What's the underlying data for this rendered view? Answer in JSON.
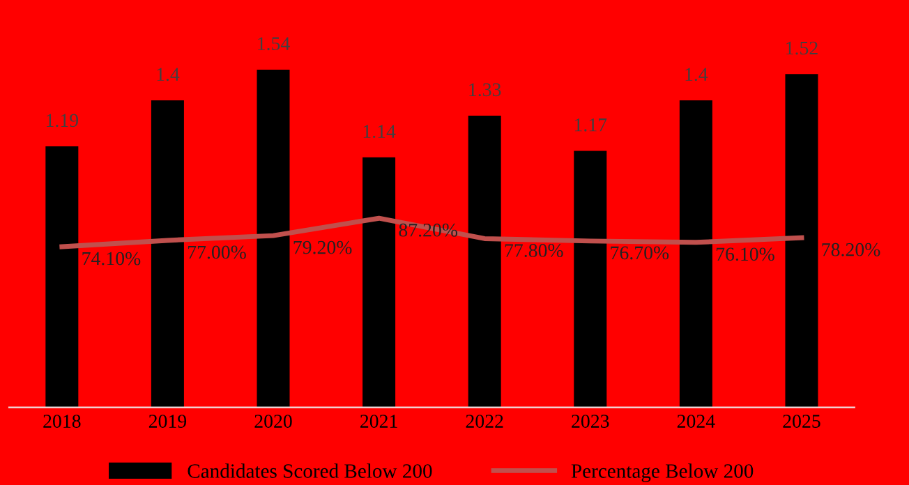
{
  "chart_data": {
    "type": "bar",
    "categories": [
      "2018",
      "2019",
      "2020",
      "2021",
      "2022",
      "2023",
      "2024",
      "2025"
    ],
    "series": [
      {
        "name": "Candidates Scored Below 200",
        "color": "#000000",
        "values": [
          1.19,
          1.4,
          1.54,
          1.14,
          1.33,
          1.17,
          1.4,
          1.52
        ],
        "value_labels": [
          "1.19",
          "1.4",
          "1.54",
          "1.14",
          "1.33",
          "1.17",
          "1.4",
          "1.52"
        ]
      },
      {
        "name": "Percentage Below 200",
        "type": "line",
        "axis": "y2",
        "color": "#c0504d",
        "values": [
          74.1,
          77.0,
          79.2,
          87.2,
          77.8,
          76.7,
          76.1,
          78.2
        ],
        "value_labels": [
          "74.10%",
          "77.00%",
          "79.20%",
          "87.20%",
          "77.80%",
          "76.70%",
          "76.10%",
          "78.20%"
        ]
      }
    ],
    "tick_labels": "x",
    "grid": false,
    "legend": "bottom",
    "marker": "none",
    "line_style": "solid"
  }
}
